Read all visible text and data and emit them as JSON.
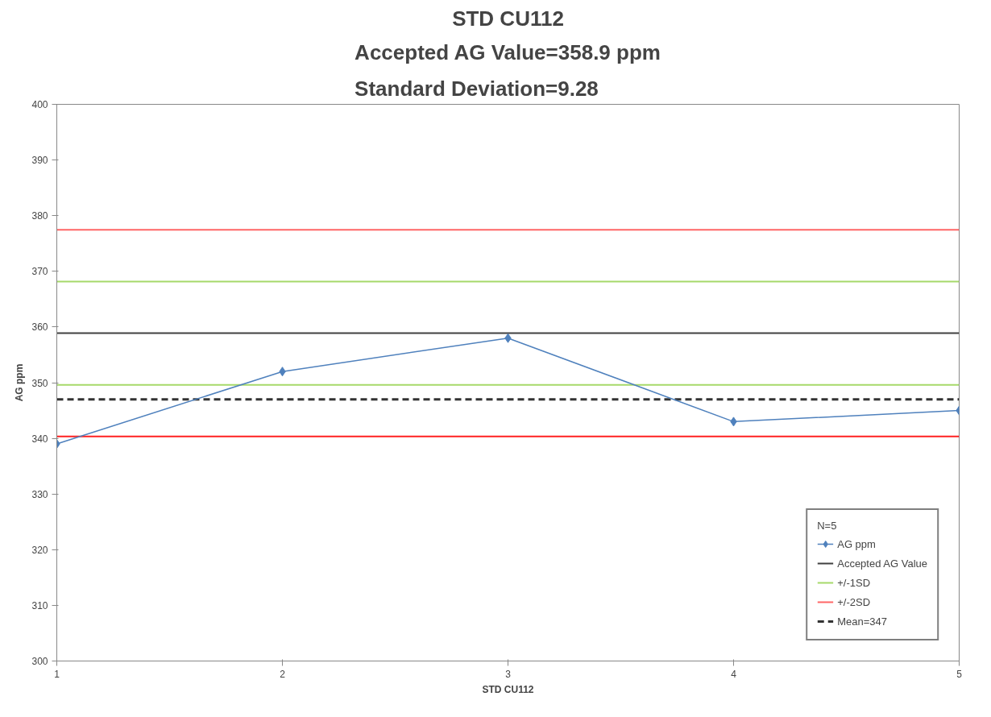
{
  "chart_data": {
    "type": "line",
    "title": "STD CU112",
    "subtitle": "Accepted AG Value=358.9 ppm\nStandard Deviation=9.28",
    "xlabel": "STD CU112",
    "ylabel": "AG ppm",
    "legend_title": "N=5",
    "x": [
      1,
      2,
      3,
      4,
      5
    ],
    "series": [
      {
        "name": "AG ppm",
        "color": "#4f81bd",
        "values": [
          339,
          352,
          358,
          343,
          345
        ]
      }
    ],
    "marker": "diamond",
    "line_style": "solid",
    "ref_lines": [
      {
        "axis": "y",
        "value": 358.9,
        "label": "Accepted AG Value",
        "color": "#404040"
      },
      {
        "axis": "y",
        "value": 368.18,
        "label": "+/-1SD",
        "color": "#a6d96a"
      },
      {
        "axis": "y",
        "value": 349.62,
        "color": "#a6d96a"
      },
      {
        "axis": "y",
        "value": 377.46,
        "label": "+/-2SD",
        "color": "#ff6666"
      },
      {
        "axis": "y",
        "value": 340.34,
        "color": "#ff2020"
      },
      {
        "axis": "y",
        "value": 347,
        "label": "Mean=347",
        "color": "#333333",
        "line_style": "dashed"
      }
    ],
    "xlim": [
      1,
      5
    ],
    "xticks": [
      1,
      2,
      3,
      4,
      5
    ],
    "ylim": [
      300,
      400
    ],
    "yticks": [
      300,
      310,
      320,
      330,
      340,
      350,
      360,
      370,
      380,
      390,
      400
    ],
    "grid": false,
    "legend": "bottom right"
  }
}
